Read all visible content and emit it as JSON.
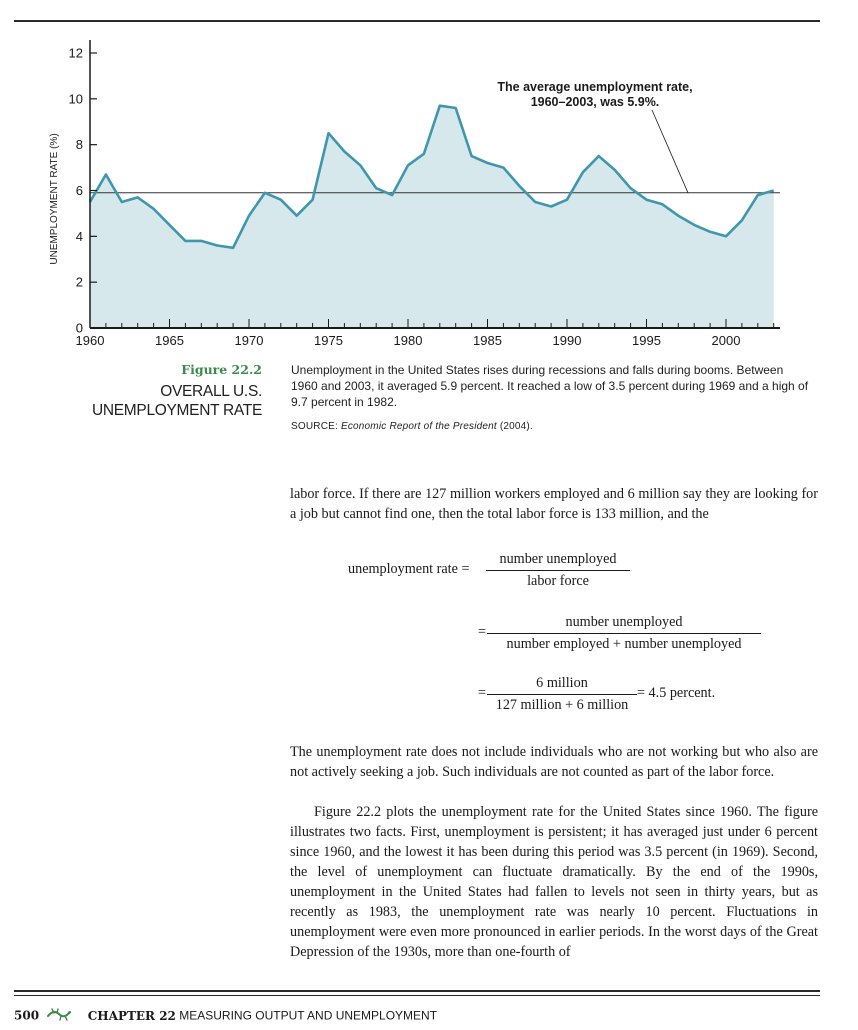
{
  "chart_data": {
    "type": "area",
    "ylabel": "UNEMPLOYMENT RATE (%)",
    "xlabel": "",
    "xlim": [
      1960,
      2004
    ],
    "ylim": [
      0,
      12
    ],
    "x_ticks": [
      1960,
      1965,
      1970,
      1975,
      1980,
      1985,
      1990,
      1995,
      2000
    ],
    "y_ticks": [
      0,
      2,
      4,
      6,
      8,
      10,
      12
    ],
    "average_line": 5.9,
    "annotation": "The average unemployment rate,\n1960–2003, was 5.9%.",
    "x": [
      1960,
      1961,
      1962,
      1963,
      1964,
      1965,
      1966,
      1967,
      1968,
      1969,
      1970,
      1971,
      1972,
      1973,
      1974,
      1975,
      1976,
      1977,
      1978,
      1979,
      1980,
      1981,
      1982,
      1983,
      1984,
      1985,
      1986,
      1987,
      1988,
      1989,
      1990,
      1991,
      1992,
      1993,
      1994,
      1995,
      1996,
      1997,
      1998,
      1999,
      2000,
      2001,
      2002,
      2003
    ],
    "values": [
      5.5,
      6.7,
      5.5,
      5.7,
      5.2,
      4.5,
      3.8,
      3.8,
      3.6,
      3.5,
      4.9,
      5.9,
      5.6,
      4.9,
      5.6,
      8.5,
      7.7,
      7.1,
      6.1,
      5.8,
      7.1,
      7.6,
      9.7,
      9.6,
      7.5,
      7.2,
      7.0,
      6.2,
      5.5,
      5.3,
      5.6,
      6.8,
      7.5,
      6.9,
      6.1,
      5.6,
      5.4,
      4.9,
      4.5,
      4.2,
      4.0,
      4.7,
      5.8,
      6.0
    ],
    "fill_color": "#d6e8ec",
    "line_color": "#3f97ad"
  },
  "figure": {
    "number": "Figure 22.2",
    "title": "OVERALL U.S. UNEMPLOYMENT RATE",
    "caption": "Unemployment in the United States rises during recessions and falls during booms. Between 1960 and 2003, it averaged 5.9 percent. It reached a low of 3.5 percent during 1969 and a high of 9.7 percent in 1982.",
    "source_prefix": "SOURCE: ",
    "source_title": "Economic Report of the President",
    "source_suffix": " (2004)."
  },
  "body": {
    "p1": "labor force. If there are 127 million workers employed and 6 million say they are looking for a job but cannot find one, then the total labor force is 133 million, and the",
    "p2": "The unemployment rate does not include individuals who are not working but who also are not actively seeking a job. Such individuals are not counted as part of the labor force.",
    "p3": "Figure 22.2 plots the unemployment rate for the United States since 1960. The figure illustrates two facts. First, unemployment is persistent; it has averaged just under 6 percent since 1960, and the lowest it has been during this period was 3.5 percent (in 1969). Second, the level of unemployment can fluctuate dramatically. By the end of the 1990s, unemployment in the United States had fallen to levels not seen in thirty years, but as recently as 1983, the unemployment rate was nearly 10 percent. Fluctuations in unemployment were even more pronounced in earlier periods. In the worst days of the Great Depression of the 1930s, more than one-fourth of"
  },
  "equation": {
    "lhs": "unemployment rate =",
    "f1_num": "number unemployed",
    "f1_den": "labor force",
    "eq2": "=",
    "f2_num": "number unemployed",
    "f2_den": "number employed + number unemployed",
    "eq3": "=",
    "f3_num": "6 million",
    "f3_den": "127 million + 6 million",
    "result": "= 4.5 percent."
  },
  "footer": {
    "page": "500",
    "chapter_label": "CHAPTER 22",
    "chapter_title": "MEASURING OUTPUT AND UNEMPLOYMENT",
    "icon": "lizard-icon"
  }
}
